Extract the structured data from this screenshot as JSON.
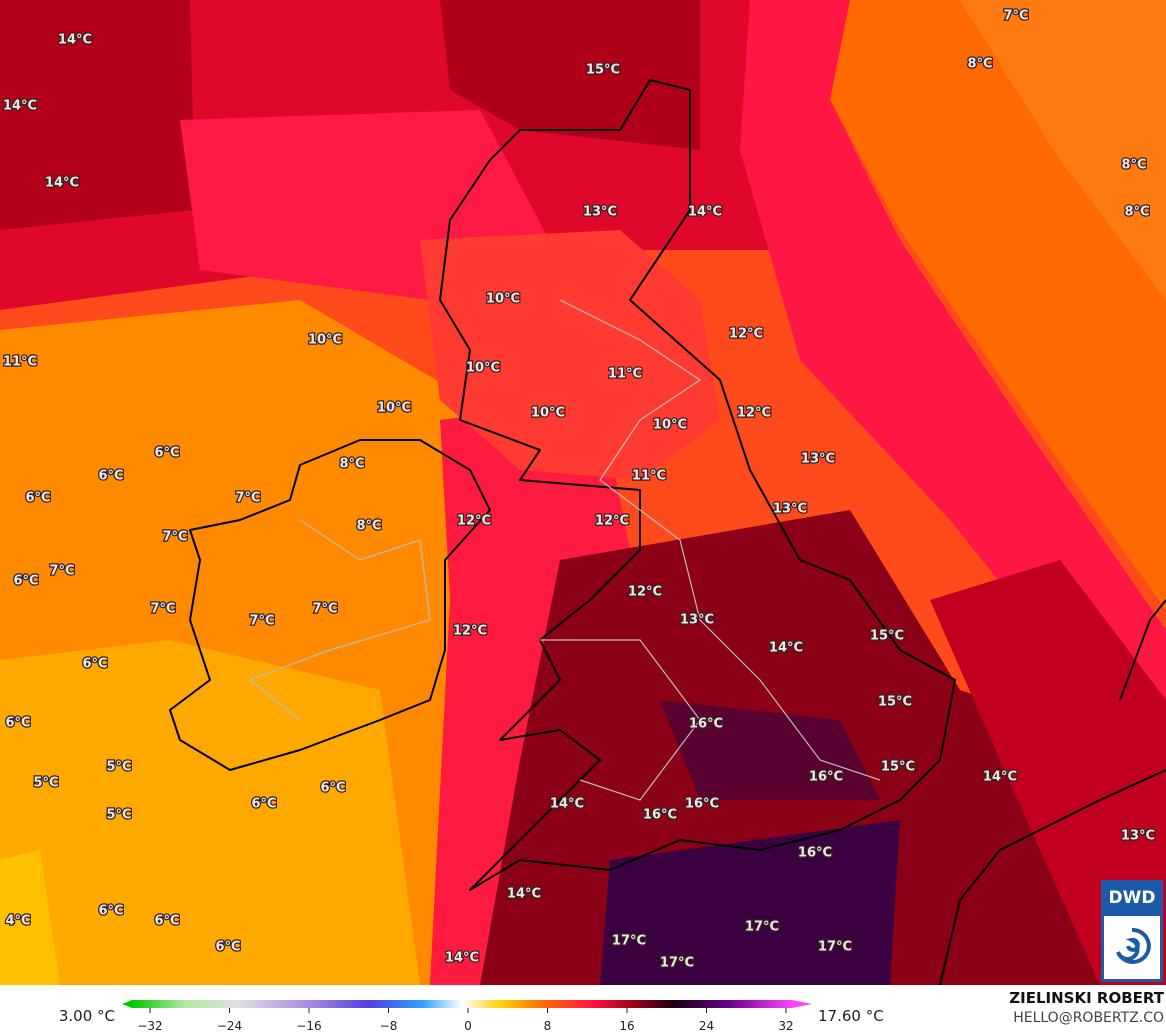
{
  "map": {
    "temperature_labels": [
      "14°C",
      "15°C",
      "7°C",
      "8°C",
      "14°C",
      "14°C",
      "8°C",
      "8°C",
      "13°C",
      "14°C",
      "10°C",
      "10°C",
      "12°C",
      "11°C",
      "10°C",
      "11°C",
      "10°C",
      "10°C",
      "10°C",
      "12°C",
      "6°C",
      "13°C",
      "8°C",
      "6°C",
      "11°C",
      "6°C",
      "7°C",
      "13°C",
      "12°C",
      "12°C",
      "8°C",
      "7°C",
      "7°C",
      "6°C",
      "12°C",
      "7°C",
      "7°C",
      "7°C",
      "13°C",
      "12°C",
      "15°C",
      "14°C",
      "6°C",
      "15°C",
      "6°C",
      "16°C",
      "5°C",
      "15°C",
      "16°C",
      "5°C",
      "14°C",
      "6°C",
      "6°C",
      "14°C",
      "16°C",
      "5°C",
      "16°C",
      "13°C",
      "16°C",
      "14°C",
      "6°C",
      "6°C",
      "4°C",
      "17°C",
      "17°C",
      "17°C",
      "6°C",
      "14°C",
      "17°C"
    ],
    "colorbar": {
      "min_label": "3.00 °C",
      "max_label": "17.60 °C",
      "ticks": [
        {
          "value": -32,
          "label": "−32"
        },
        {
          "value": -24,
          "label": "−24"
        },
        {
          "value": -16,
          "label": "−16"
        },
        {
          "value": -8,
          "label": "−8"
        },
        0,
        8,
        16,
        24,
        32
      ]
    },
    "credit": {
      "author": "ZIELINSKI ROBERT",
      "contact": "HELLO@ROBERTZ.CO"
    },
    "logo": "DWD"
  }
}
